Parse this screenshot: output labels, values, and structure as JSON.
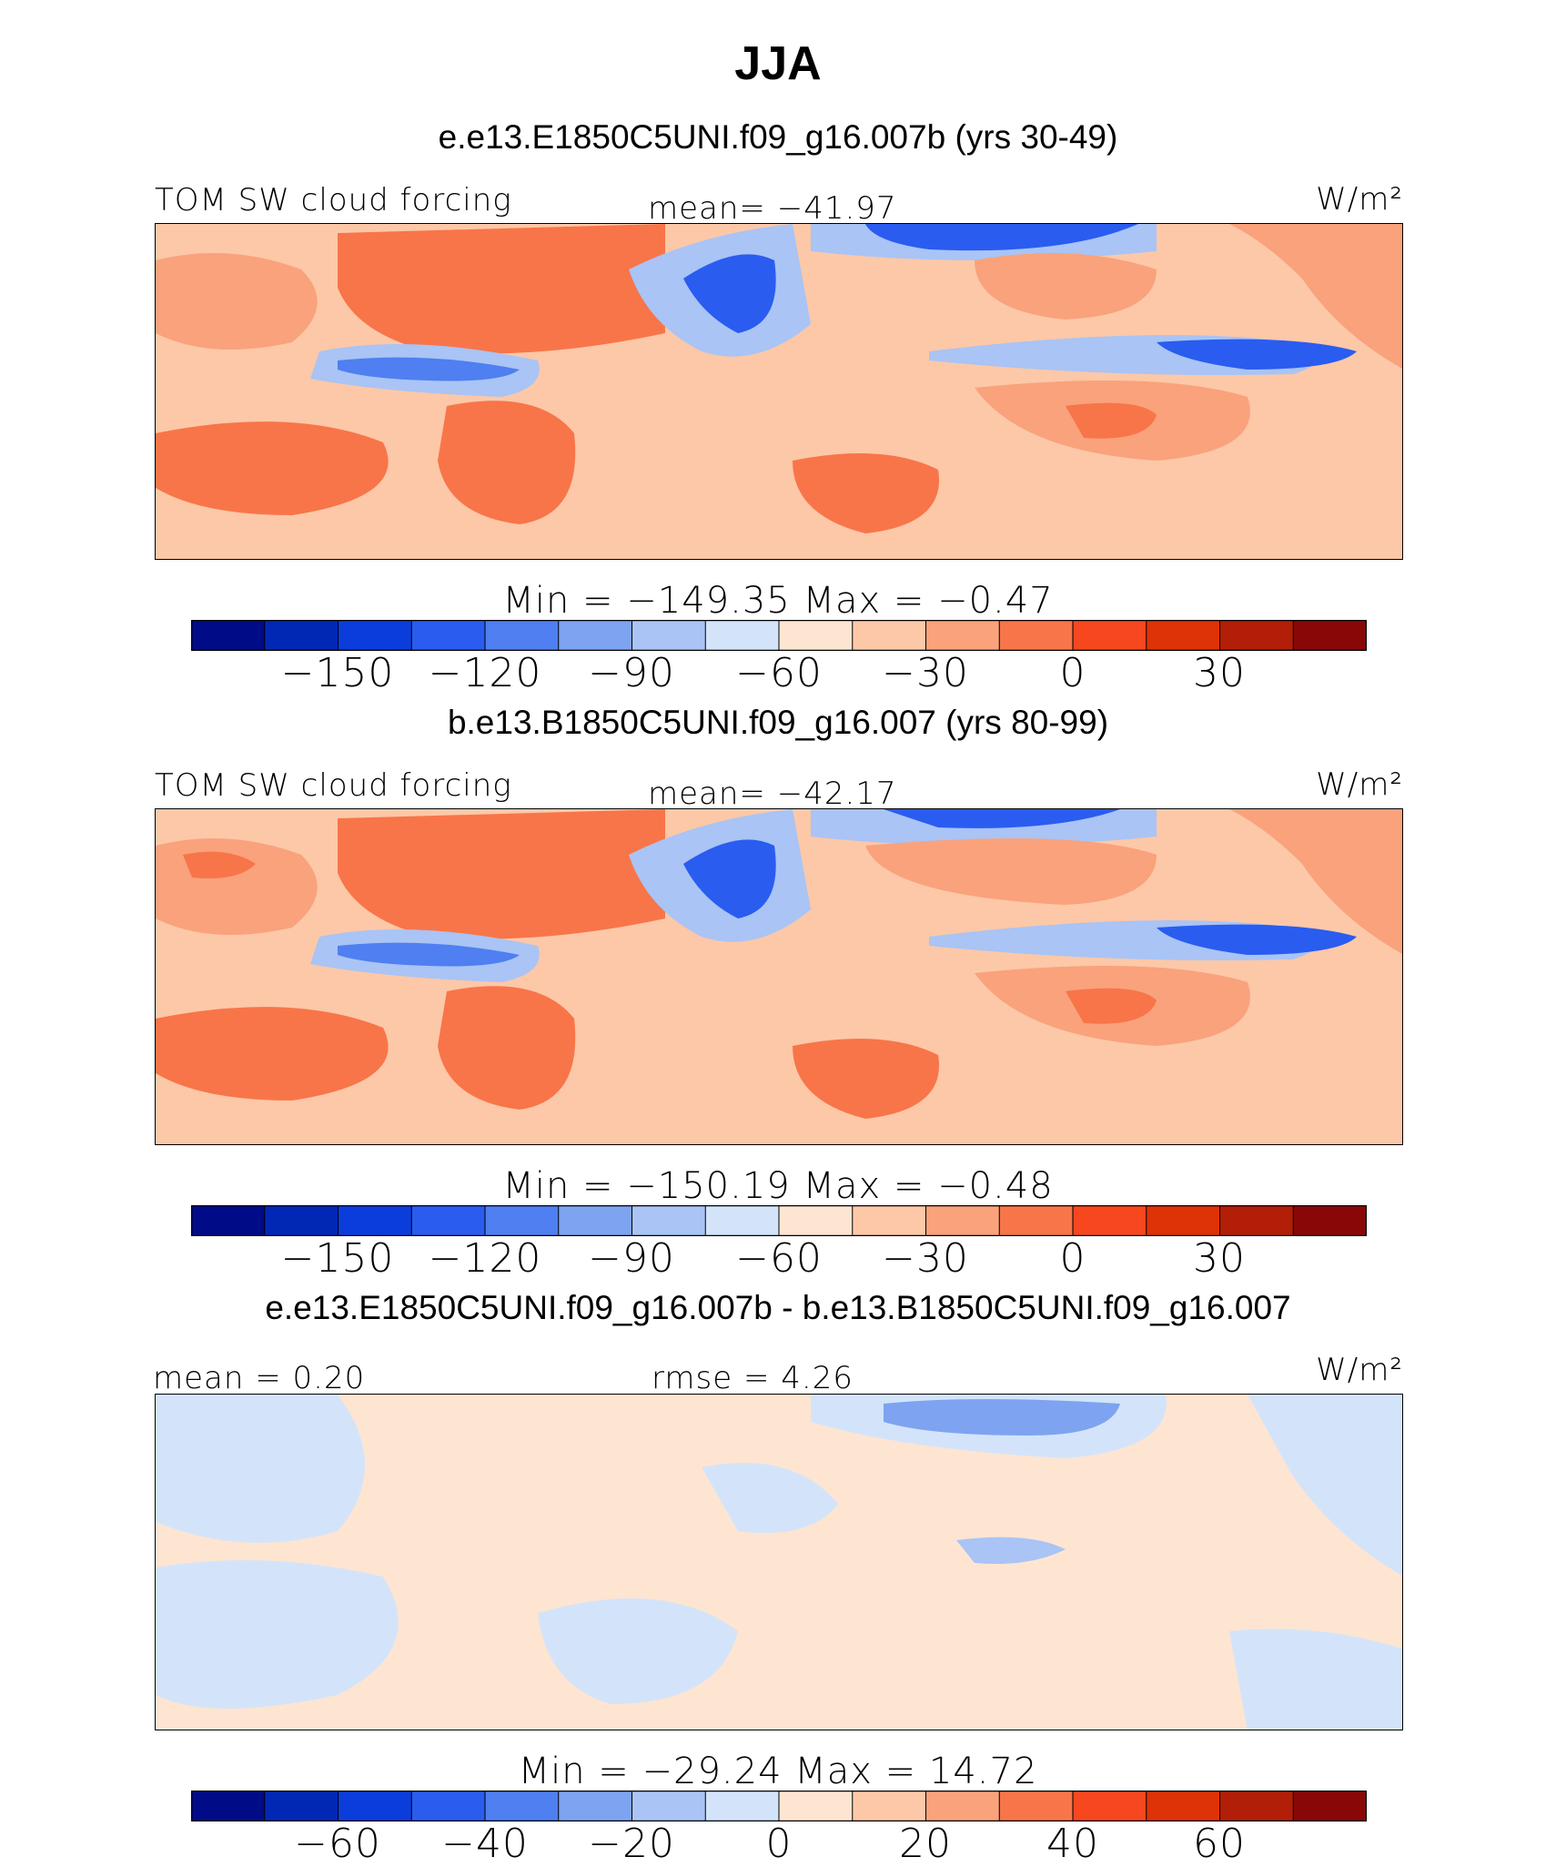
{
  "figure_title": "JJA",
  "chart_data": [
    {
      "type": "heatmap",
      "title": "e.e13.E1850C5UNI.f09_g16.007b (yrs 30-49)",
      "left_label": "TOM  SW  cloud  forcing",
      "center_label": "mean=  −41.97",
      "units": "W/m²",
      "min_max": "Min  =  −149.35  Max  =    −0.47",
      "colorbar_ticks": [
        "−150",
        "−120",
        "−90",
        "−60",
        "−30",
        "0",
        "30"
      ],
      "colorbar_levels": [
        -165,
        -150,
        -135,
        -120,
        -105,
        -90,
        -75,
        -60,
        -45,
        -30,
        -15,
        0,
        15,
        30,
        45,
        60
      ]
    },
    {
      "type": "heatmap",
      "title": "b.e13.B1850C5UNI.f09_g16.007 (yrs 80-99)",
      "left_label": "TOM  SW  cloud  forcing",
      "center_label": "mean=  −42.17",
      "units": "W/m²",
      "min_max": "Min  =  −150.19  Max  =    −0.48",
      "colorbar_ticks": [
        "−150",
        "−120",
        "−90",
        "−60",
        "−30",
        "0",
        "30"
      ],
      "colorbar_levels": [
        -165,
        -150,
        -135,
        -120,
        -105,
        -90,
        -75,
        -60,
        -45,
        -30,
        -15,
        0,
        15,
        30,
        45,
        60
      ]
    },
    {
      "type": "heatmap",
      "title": "e.e13.E1850C5UNI.f09_g16.007b - b.e13.B1850C5UNI.f09_g16.007",
      "left_label": "mean  =     0.20",
      "center_label": "rmse  =     4.26",
      "units": "W/m²",
      "min_max": "Min  =  −29.24  Max  =    14.72",
      "colorbar_ticks": [
        "−60",
        "−40",
        "−20",
        "0",
        "20",
        "40",
        "60"
      ],
      "colorbar_levels": [
        -70,
        -60,
        -50,
        -40,
        -30,
        -20,
        -10,
        0,
        10,
        20,
        30,
        40,
        50,
        60,
        70,
        80
      ]
    }
  ],
  "colormap": [
    "#000b87",
    "#0028b5",
    "#0a3ddc",
    "#2a5cf0",
    "#4f7ff0",
    "#7ea3f0",
    "#a9c4f5",
    "#d3e4fa",
    "#fee5d2",
    "#fcc8a8",
    "#f9a27c",
    "#f87549",
    "#f6471f",
    "#de3207",
    "#b21e07",
    "#8a0707"
  ]
}
